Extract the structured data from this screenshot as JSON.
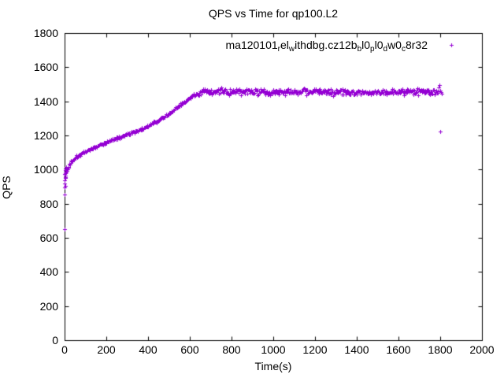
{
  "chart_data": {
    "type": "scatter",
    "title": "QPS vs Time for qp100.L2",
    "xlabel": "Time(s)",
    "ylabel": "QPS",
    "xlim": [
      0,
      2000
    ],
    "ylim": [
      0,
      1800
    ],
    "x_ticks": [
      0,
      200,
      400,
      600,
      800,
      1000,
      1200,
      1400,
      1600,
      1800,
      2000
    ],
    "y_ticks": [
      0,
      200,
      400,
      600,
      800,
      1000,
      1200,
      1400,
      1600,
      1800
    ],
    "grid": false,
    "background_color": "#ffffff",
    "border_color": "#000000",
    "legend": {
      "position": "top-right-inside",
      "marker": "plus",
      "series_name_raw": "ma120101_rel_withdbg.cz12b_bl0_pl0_dw0_c8r32",
      "label_segments": [
        [
          "t",
          "ma120101"
        ],
        [
          "s",
          "r"
        ],
        [
          "t",
          "el"
        ],
        [
          "s",
          "w"
        ],
        [
          "t",
          "ithdbg.cz12b"
        ],
        [
          "s",
          "b"
        ],
        [
          "t",
          "l0"
        ],
        [
          "s",
          "p"
        ],
        [
          "t",
          "l0"
        ],
        [
          "s",
          "d"
        ],
        [
          "t",
          "w0"
        ],
        [
          "s",
          "c"
        ],
        [
          "t",
          "8r32"
        ]
      ]
    },
    "series": [
      {
        "name": "ma120101_rel_withdbg.cz12b_bl0_pl0_dw0_c8r32",
        "color": "#9400D3",
        "marker": "plus",
        "marker_px": 5,
        "sample_step": 3,
        "t_range": [
          8,
          1790
        ],
        "noise_ramp": 13,
        "noise_plateau": 28,
        "plateau_start": 640,
        "seed": 1337,
        "trend_anchors": [
          [
            0,
            945
          ],
          [
            8,
            985
          ],
          [
            30,
            1045
          ],
          [
            60,
            1080
          ],
          [
            100,
            1107
          ],
          [
            150,
            1135
          ],
          [
            200,
            1160
          ],
          [
            250,
            1183
          ],
          [
            300,
            1207
          ],
          [
            350,
            1230
          ],
          [
            400,
            1255
          ],
          [
            450,
            1290
          ],
          [
            500,
            1328
          ],
          [
            550,
            1374
          ],
          [
            590,
            1412
          ],
          [
            620,
            1438
          ],
          [
            655,
            1452
          ],
          [
            700,
            1456
          ],
          [
            1000,
            1458
          ],
          [
            1400,
            1456
          ],
          [
            1790,
            1458
          ]
        ],
        "extra_points": [
          [
            0,
            650
          ],
          [
            1,
            852
          ],
          [
            1,
            896
          ],
          [
            0,
            918
          ],
          [
            1,
            938
          ],
          [
            2,
            905
          ],
          [
            2,
            956
          ],
          [
            0,
            972
          ],
          [
            3,
            964
          ],
          [
            2,
            986
          ],
          [
            4,
            996
          ],
          [
            3,
            1006
          ],
          [
            5,
            978
          ],
          [
            6,
            1002
          ],
          [
            4,
            952
          ],
          [
            7,
            1014
          ],
          [
            1793,
            1480
          ],
          [
            1796,
            1494
          ],
          [
            1800,
            1464
          ],
          [
            1803,
            1452
          ],
          [
            1807,
            1444
          ],
          [
            1800,
            1223
          ]
        ]
      }
    ]
  },
  "layout_text": {
    "note": ""
  }
}
